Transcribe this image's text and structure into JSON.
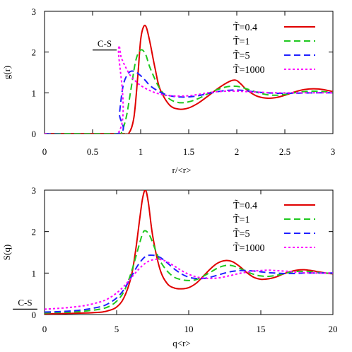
{
  "colors": {
    "red": "#e00000",
    "green": "#1ec81e",
    "blue": "#2020ff",
    "magenta": "#ff00ff",
    "axis": "#000000"
  },
  "chart_data": [
    {
      "type": "line",
      "xlabel": "r/<r>",
      "ylabel": "g(r)",
      "xlim": [
        0,
        3
      ],
      "ylim": [
        0,
        3
      ],
      "xticks": [
        "0",
        "0.5",
        "1",
        "1.5",
        "2",
        "2.5",
        "3"
      ],
      "yticks": [
        "0",
        "1",
        "2",
        "3"
      ],
      "grid": false,
      "legend_position": "top-right",
      "annotation": {
        "text": "C-S",
        "y": 2.05,
        "x_range": [
          0.5,
          0.75
        ]
      },
      "series": [
        {
          "name": "T̃=0.4",
          "color": "#e00000",
          "dash": "solid",
          "x": [
            0,
            0.76,
            0.82,
            0.88,
            0.93,
            0.97,
            1.0,
            1.03,
            1.06,
            1.1,
            1.15,
            1.2,
            1.3,
            1.4,
            1.5,
            1.6,
            1.7,
            1.8,
            1.9,
            1.96,
            2.0,
            2.05,
            2.1,
            2.2,
            2.3,
            2.4,
            2.5,
            2.6,
            2.7,
            2.8,
            2.9,
            3.0
          ],
          "y": [
            0,
            0,
            0.0,
            0.02,
            0.4,
            1.4,
            2.3,
            2.62,
            2.6,
            2.2,
            1.6,
            1.1,
            0.7,
            0.6,
            0.63,
            0.75,
            0.92,
            1.1,
            1.25,
            1.31,
            1.3,
            1.2,
            1.08,
            0.93,
            0.87,
            0.88,
            0.94,
            1.02,
            1.08,
            1.1,
            1.08,
            1.03
          ]
        },
        {
          "name": "T̃=1",
          "color": "#1ec81e",
          "dash": "dashed",
          "x": [
            0,
            0.77,
            0.8,
            0.85,
            0.9,
            0.95,
            1.0,
            1.05,
            1.1,
            1.2,
            1.3,
            1.4,
            1.5,
            1.6,
            1.7,
            1.8,
            1.9,
            2.0,
            2.1,
            2.2,
            2.3,
            2.4,
            2.5,
            2.6,
            2.7,
            2.8,
            2.9,
            3.0
          ],
          "y": [
            0,
            0,
            0.02,
            0.4,
            1.1,
            1.8,
            2.05,
            1.95,
            1.6,
            1.1,
            0.85,
            0.76,
            0.78,
            0.86,
            0.98,
            1.08,
            1.15,
            1.16,
            1.1,
            1.02,
            0.96,
            0.94,
            0.96,
            1.0,
            1.03,
            1.04,
            1.03,
            1.01
          ]
        },
        {
          "name": "T̃=5",
          "color": "#2020ff",
          "dash": "dashed",
          "x": [
            0,
            0.76,
            0.78,
            0.82,
            0.88,
            0.94,
            1.0,
            1.05,
            1.1,
            1.2,
            1.3,
            1.4,
            1.5,
            1.6,
            1.7,
            1.8,
            1.9,
            2.0,
            2.1,
            2.2,
            2.4,
            2.6,
            2.8,
            3.0
          ],
          "y": [
            0,
            0,
            0.5,
            1.2,
            1.5,
            1.52,
            1.42,
            1.3,
            1.17,
            1.02,
            0.93,
            0.9,
            0.9,
            0.93,
            0.98,
            1.03,
            1.06,
            1.07,
            1.05,
            1.02,
            0.99,
            0.99,
            1.0,
            1.0
          ]
        },
        {
          "name": "T̃=1000",
          "color": "#ff00ff",
          "dash": "dotted",
          "x": [
            0,
            0.76,
            0.77,
            0.8,
            0.85,
            0.9,
            0.95,
            1.0,
            1.1,
            1.2,
            1.3,
            1.4,
            1.5,
            1.6,
            1.7,
            1.8,
            1.9,
            2.0,
            2.1,
            2.2,
            2.4,
            2.6,
            2.8,
            3.0
          ],
          "y": [
            0,
            0,
            2.05,
            1.85,
            1.6,
            1.4,
            1.28,
            1.18,
            1.05,
            0.97,
            0.93,
            0.92,
            0.93,
            0.96,
            1.0,
            1.03,
            1.04,
            1.04,
            1.03,
            1.02,
            1.0,
            1.0,
            1.0,
            1.0
          ]
        }
      ]
    },
    {
      "type": "line",
      "xlabel": "q<r>",
      "ylabel": "S(q)",
      "xlim": [
        0,
        20
      ],
      "ylim": [
        0,
        3
      ],
      "xticks": [
        "0",
        "5",
        "10",
        "15",
        "20"
      ],
      "yticks": [
        "0",
        "1",
        "2",
        "3"
      ],
      "grid": false,
      "legend_position": "top-right",
      "annotation": {
        "text": "C-S",
        "y": 0.13,
        "x_range": [
          -2.2,
          -0.5
        ]
      },
      "series": [
        {
          "name": "T̃=0.4",
          "color": "#e00000",
          "dash": "solid",
          "x": [
            0,
            1,
            2,
            3,
            4,
            4.5,
            5,
            5.5,
            6,
            6.3,
            6.6,
            6.8,
            7.0,
            7.2,
            7.5,
            8,
            8.5,
            9,
            9.5,
            10,
            10.5,
            11,
            11.5,
            12,
            12.5,
            13,
            13.5,
            14,
            14.5,
            15,
            15.5,
            16,
            16.5,
            17,
            17.5,
            18,
            18.5,
            19,
            19.5,
            20
          ],
          "y": [
            0.02,
            0.02,
            0.03,
            0.04,
            0.06,
            0.1,
            0.18,
            0.4,
            0.9,
            1.5,
            2.3,
            2.8,
            3.0,
            2.7,
            1.9,
            1.1,
            0.75,
            0.64,
            0.62,
            0.65,
            0.75,
            0.92,
            1.1,
            1.24,
            1.3,
            1.28,
            1.17,
            1.02,
            0.9,
            0.85,
            0.86,
            0.9,
            0.97,
            1.03,
            1.07,
            1.08,
            1.06,
            1.03,
            1.0,
            0.98
          ]
        },
        {
          "name": "T̃=1",
          "color": "#1ec81e",
          "dash": "dashed",
          "x": [
            0,
            1,
            2,
            3,
            4,
            4.5,
            5,
            5.5,
            6,
            6.5,
            6.8,
            7.0,
            7.3,
            7.7,
            8,
            8.5,
            9,
            9.5,
            10,
            10.5,
            11,
            11.5,
            12,
            12.5,
            13,
            13.5,
            14,
            14.5,
            15,
            15.5,
            16,
            16.5,
            17,
            17.5,
            18,
            18.5,
            19,
            19.5,
            20
          ],
          "y": [
            0.04,
            0.05,
            0.06,
            0.09,
            0.14,
            0.2,
            0.32,
            0.55,
            1.0,
            1.6,
            1.95,
            2.02,
            1.9,
            1.55,
            1.3,
            1.05,
            0.9,
            0.84,
            0.82,
            0.84,
            0.92,
            1.02,
            1.12,
            1.18,
            1.18,
            1.12,
            1.04,
            0.97,
            0.93,
            0.92,
            0.94,
            0.98,
            1.02,
            1.04,
            1.04,
            1.03,
            1.01,
            1.0,
            0.99
          ]
        },
        {
          "name": "T̃=5",
          "color": "#2020ff",
          "dash": "dashed",
          "x": [
            0,
            1,
            2,
            3,
            4,
            4.5,
            5,
            5.5,
            6,
            6.5,
            7,
            7.5,
            8,
            8.5,
            9,
            9.5,
            10,
            10.5,
            11,
            11.5,
            12,
            12.5,
            13,
            13.5,
            14,
            14.5,
            15,
            15.5,
            16,
            16.5,
            17,
            17.5,
            18,
            19,
            20
          ],
          "y": [
            0.06,
            0.07,
            0.09,
            0.13,
            0.2,
            0.28,
            0.4,
            0.6,
            0.9,
            1.2,
            1.4,
            1.43,
            1.38,
            1.25,
            1.1,
            0.98,
            0.9,
            0.87,
            0.87,
            0.9,
            0.95,
            1.0,
            1.04,
            1.06,
            1.06,
            1.05,
            1.03,
            1.01,
            1.0,
            0.99,
            0.99,
            0.99,
            1.0,
            1.0,
            1.0
          ]
        },
        {
          "name": "T̃=1000",
          "color": "#ff00ff",
          "dash": "dotted",
          "x": [
            0,
            1,
            2,
            3,
            4,
            4.5,
            5,
            5.5,
            6,
            6.5,
            7,
            7.5,
            8,
            8.5,
            9,
            9.5,
            10,
            10.5,
            11,
            11.5,
            12,
            12.5,
            13,
            13.5,
            14,
            14.5,
            15,
            15.5,
            16,
            16.5,
            17,
            17.5,
            18,
            19,
            20
          ],
          "y": [
            0.13,
            0.15,
            0.18,
            0.23,
            0.32,
            0.4,
            0.52,
            0.68,
            0.88,
            1.08,
            1.24,
            1.32,
            1.33,
            1.27,
            1.17,
            1.06,
            0.97,
            0.91,
            0.88,
            0.87,
            0.88,
            0.91,
            0.95,
            0.99,
            1.02,
            1.05,
            1.06,
            1.07,
            1.06,
            1.05,
            1.04,
            1.02,
            1.01,
            1.0,
            1.0
          ]
        }
      ]
    }
  ]
}
